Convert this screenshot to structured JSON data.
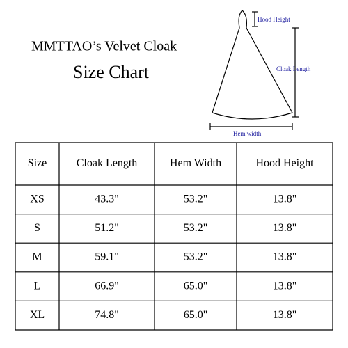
{
  "header": {
    "title": "MMTTAO’s Velvet Cloak",
    "subtitle": "Size Chart"
  },
  "diagram": {
    "hood_height": "Hood Height",
    "cloak_length": "Cloak Length",
    "hem_width": "Hem width"
  },
  "table": {
    "columns": [
      "Size",
      "Cloak Length",
      "Hem Width",
      "Hood Height"
    ],
    "rows": [
      [
        "XS",
        "43.3\"",
        "53.2\"",
        "13.8\""
      ],
      [
        "S",
        "51.2\"",
        "53.2\"",
        "13.8\""
      ],
      [
        "M",
        "59.1\"",
        "53.2\"",
        "13.8\""
      ],
      [
        "L",
        "66.9\"",
        "65.0\"",
        "13.8\""
      ],
      [
        "XL",
        "74.8\"",
        "65.0\"",
        "13.8\""
      ]
    ]
  }
}
